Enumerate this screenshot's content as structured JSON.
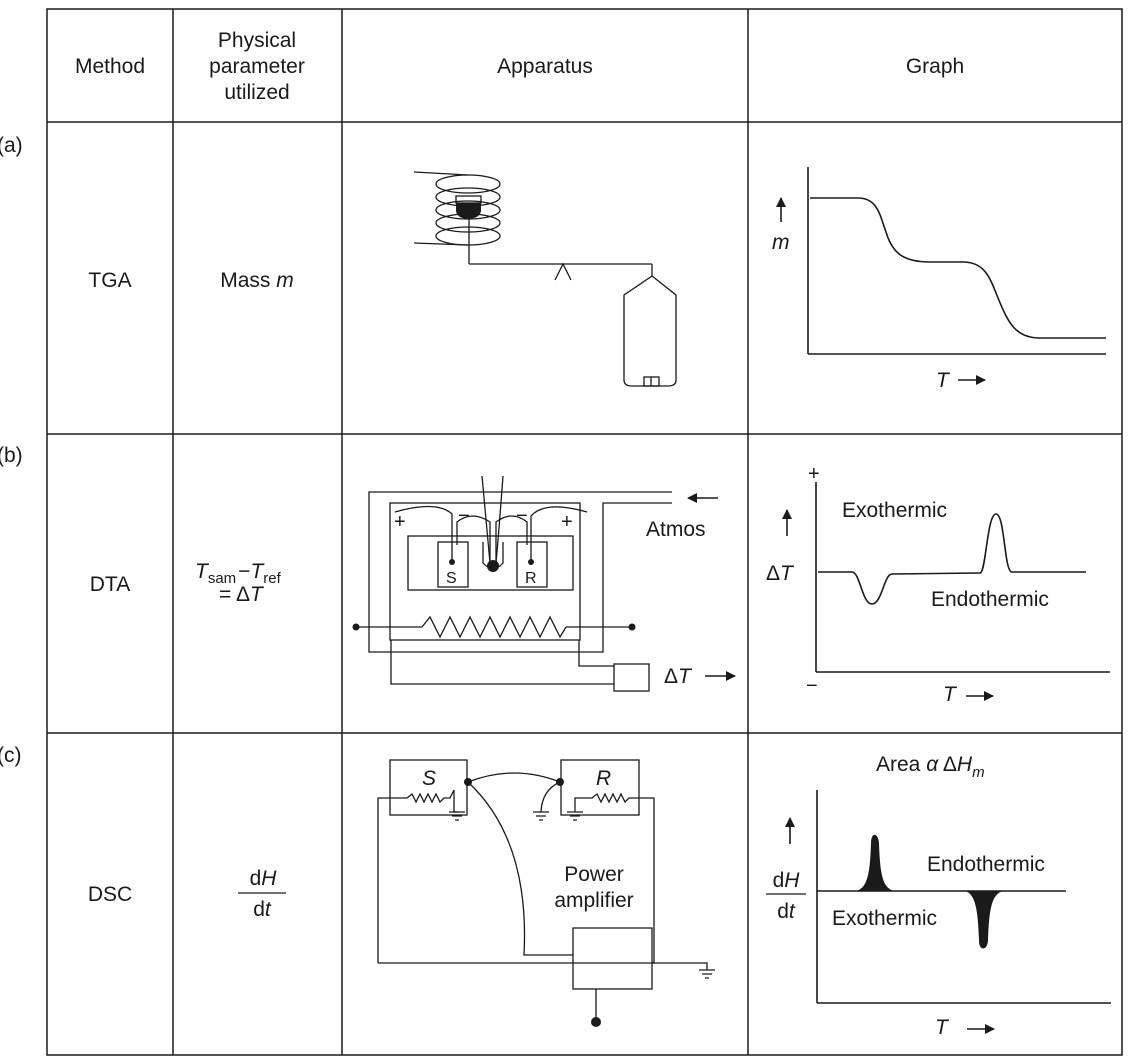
{
  "table": {
    "headers": {
      "method": "Method",
      "param_line1": "Physical",
      "param_line2": "parameter",
      "param_line3": "utilized",
      "apparatus": "Apparatus",
      "graph": "Graph"
    },
    "rows": [
      {
        "label": "(a)",
        "method": "TGA",
        "param_text": "Mass ",
        "param_italic": "m",
        "graph": {
          "y_label": "m",
          "x_label": "T"
        }
      },
      {
        "label": "(b)",
        "method": "DTA",
        "param": {
          "t1": "T",
          "t1_sub": "sam",
          "minus": "−",
          "t2": "T",
          "t2_sub": "ref",
          "equals": "= Δ",
          "t3": "T"
        },
        "apparatus": {
          "plus": "+",
          "minus": "−",
          "s": "S",
          "r": "R",
          "atmos": "Atmos",
          "delta_t": "Δ",
          "delta_t_var": "T"
        },
        "graph": {
          "plus": "+",
          "minus": "−",
          "exo": "Exothermic",
          "endo": "Endothermic",
          "y_delta": "Δ",
          "y_var": "T",
          "x_label": "T"
        }
      },
      {
        "label": "(c)",
        "method": "DSC",
        "param": {
          "num_d": "d",
          "num_var": "H",
          "den_d": "d",
          "den_var": "t"
        },
        "apparatus": {
          "s": "S",
          "r": "R",
          "amp1": "Power",
          "amp2": "amplifier"
        },
        "graph": {
          "area_label": "Area ",
          "alpha": "α",
          "delta": " Δ",
          "h": "H",
          "h_sub": "m",
          "endo": "Endothermic",
          "exo": "Exothermic",
          "y_num_d": "d",
          "y_num_var": "H",
          "y_den_d": "d",
          "y_den_var": "t",
          "x_label": "T"
        }
      }
    ]
  }
}
